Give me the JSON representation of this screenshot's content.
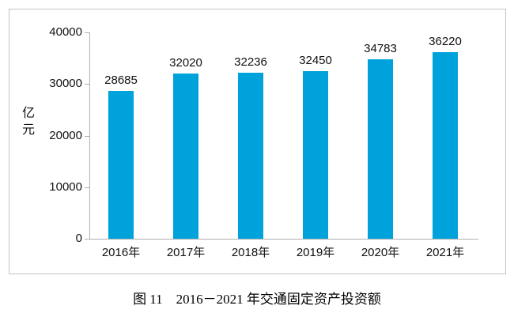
{
  "figure": {
    "caption": "图 11　2016－2021 年交通固定资产投资额",
    "y_axis_title": "亿元"
  },
  "colors": {
    "bar": "#00a2db",
    "axis": "#afafaf",
    "border": "#c3c3c3",
    "text": "#111111"
  },
  "chart_data": {
    "type": "bar",
    "title": "图 11　2016－2021 年交通固定资产投资额",
    "categories": [
      "2016年",
      "2017年",
      "2018年",
      "2019年",
      "2020年",
      "2021年"
    ],
    "values": [
      28685,
      32020,
      32236,
      32450,
      34783,
      36220
    ],
    "data_labels": [
      28685,
      32020,
      32236,
      32450,
      34783,
      36220
    ],
    "xlabel": "",
    "ylabel": "亿元",
    "ylim": [
      0,
      40000
    ],
    "yticks": [
      0,
      10000,
      20000,
      30000,
      40000
    ],
    "grid": false,
    "legend": null,
    "bar_color": "#00a2db",
    "data_labels_shown": true
  }
}
